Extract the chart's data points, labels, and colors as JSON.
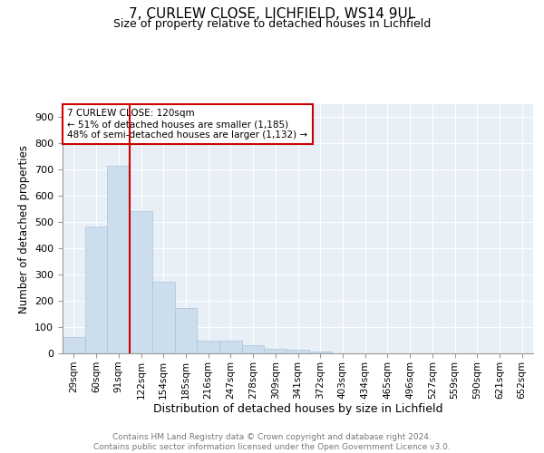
{
  "title1": "7, CURLEW CLOSE, LICHFIELD, WS14 9UL",
  "title2": "Size of property relative to detached houses in Lichfield",
  "xlabel": "Distribution of detached houses by size in Lichfield",
  "ylabel": "Number of detached properties",
  "categories": [
    "29sqm",
    "60sqm",
    "91sqm",
    "122sqm",
    "154sqm",
    "185sqm",
    "216sqm",
    "247sqm",
    "278sqm",
    "309sqm",
    "341sqm",
    "372sqm",
    "403sqm",
    "434sqm",
    "465sqm",
    "496sqm",
    "527sqm",
    "559sqm",
    "590sqm",
    "621sqm",
    "652sqm"
  ],
  "values": [
    62,
    483,
    716,
    543,
    272,
    172,
    47,
    47,
    30,
    18,
    15,
    8,
    0,
    0,
    0,
    0,
    0,
    0,
    0,
    0,
    0
  ],
  "bar_color": "#ccdded",
  "bar_edge_color": "#aac4d8",
  "vline_x": 2.5,
  "vline_color": "#cc0000",
  "annotation_text": "7 CURLEW CLOSE: 120sqm\n← 51% of detached houses are smaller (1,185)\n48% of semi-detached houses are larger (1,132) →",
  "annotation_box_color": "#ffffff",
  "annotation_box_edge": "#cc0000",
  "ylim": [
    0,
    950
  ],
  "yticks": [
    0,
    100,
    200,
    300,
    400,
    500,
    600,
    700,
    800,
    900
  ],
  "background_color": "#e8eff6",
  "footer_text": "Contains HM Land Registry data © Crown copyright and database right 2024.\nContains public sector information licensed under the Open Government Licence v3.0.",
  "title1_fontsize": 11,
  "title2_fontsize": 9,
  "xlabel_fontsize": 9,
  "ylabel_fontsize": 8.5,
  "footer_fontsize": 6.5,
  "tick_fontsize": 7.5,
  "ytick_fontsize": 8,
  "ann_fontsize": 7.5
}
